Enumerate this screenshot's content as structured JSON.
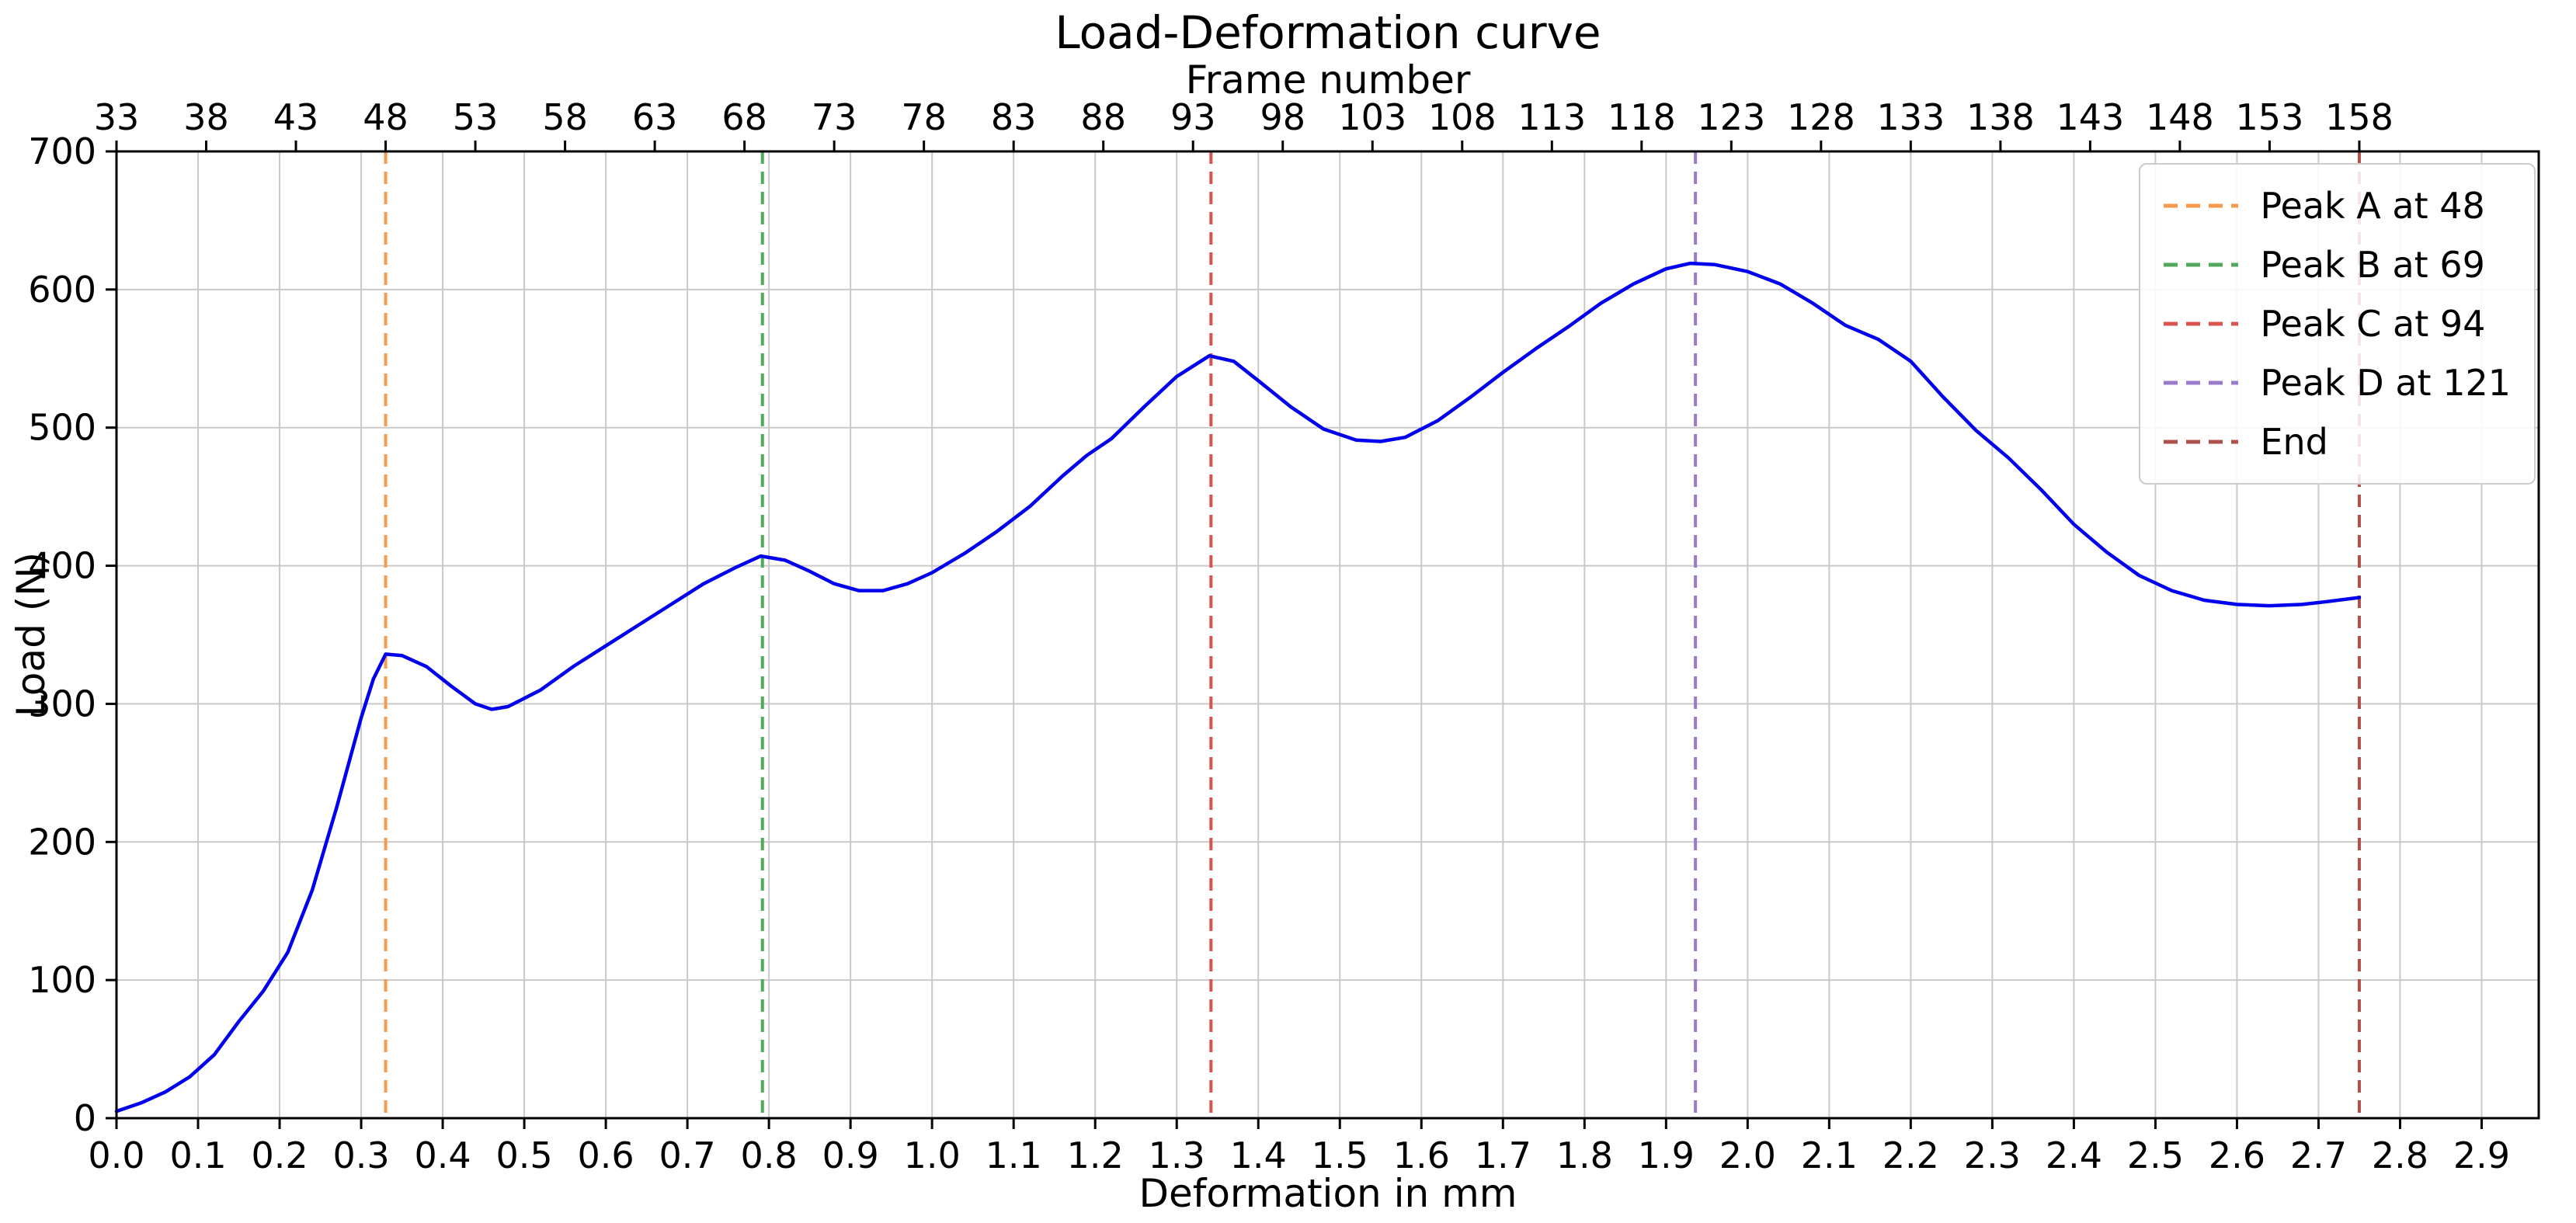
{
  "chart_data": {
    "type": "line",
    "title": "Load-Deformation curve",
    "xlabel": "Deformation in mm",
    "ylabel": "Load (N)",
    "top_axis_label": "Frame number",
    "xlim": [
      0,
      2.97
    ],
    "ylim": [
      0,
      700
    ],
    "grid": true,
    "grid_color": "#c9c9c9",
    "x_tick_values": [
      0.0,
      0.1,
      0.2,
      0.3,
      0.4,
      0.5,
      0.6,
      0.7,
      0.8,
      0.9,
      1.0,
      1.1,
      1.2,
      1.3,
      1.4,
      1.5,
      1.6,
      1.7,
      1.8,
      1.9,
      2.0,
      2.1,
      2.2,
      2.3,
      2.4,
      2.5,
      2.6,
      2.7,
      2.8,
      2.9
    ],
    "x_tick_labels": [
      "0.0",
      "0.1",
      "0.2",
      "0.3",
      "0.4",
      "0.5",
      "0.6",
      "0.7",
      "0.8",
      "0.9",
      "1.0",
      "1.1",
      "1.2",
      "1.3",
      "1.4",
      "1.5",
      "1.6",
      "1.7",
      "1.8",
      "1.9",
      "2.0",
      "2.1",
      "2.2",
      "2.3",
      "2.4",
      "2.5",
      "2.6",
      "2.7",
      "2.8",
      "2.9"
    ],
    "y_tick_values": [
      0,
      100,
      200,
      300,
      400,
      500,
      600,
      700
    ],
    "y_tick_labels": [
      "0",
      "100",
      "200",
      "300",
      "400",
      "500",
      "600",
      "700"
    ],
    "frame_tick_values": [
      33,
      38,
      43,
      48,
      53,
      58,
      63,
      68,
      73,
      78,
      83,
      88,
      93,
      98,
      103,
      108,
      113,
      118,
      123,
      128,
      133,
      138,
      143,
      148,
      153,
      158
    ],
    "frame_origin": 33,
    "mm_per_frame": 0.022,
    "series": [
      {
        "name": "load-deformation-curve",
        "color": "#0000ee",
        "x": [
          0.0,
          0.03,
          0.06,
          0.09,
          0.12,
          0.15,
          0.18,
          0.21,
          0.24,
          0.27,
          0.3,
          0.315,
          0.33,
          0.35,
          0.38,
          0.41,
          0.44,
          0.46,
          0.48,
          0.52,
          0.56,
          0.6,
          0.64,
          0.68,
          0.72,
          0.76,
          0.79,
          0.82,
          0.85,
          0.88,
          0.91,
          0.94,
          0.97,
          1.0,
          1.04,
          1.08,
          1.12,
          1.16,
          1.19,
          1.22,
          1.26,
          1.3,
          1.34,
          1.37,
          1.4,
          1.44,
          1.48,
          1.52,
          1.55,
          1.58,
          1.62,
          1.66,
          1.7,
          1.74,
          1.78,
          1.82,
          1.86,
          1.9,
          1.93,
          1.96,
          2.0,
          2.04,
          2.08,
          2.12,
          2.16,
          2.2,
          2.24,
          2.28,
          2.32,
          2.36,
          2.4,
          2.44,
          2.48,
          2.52,
          2.56,
          2.6,
          2.64,
          2.68,
          2.71,
          2.75
        ],
        "y": [
          5,
          11,
          19,
          30,
          46,
          70,
          92,
          120,
          165,
          225,
          290,
          318,
          336,
          335,
          327,
          313,
          300,
          296,
          298,
          310,
          327,
          342,
          357,
          372,
          387,
          399,
          407,
          404,
          396,
          387,
          382,
          382,
          387,
          395,
          409,
          425,
          443,
          465,
          480,
          492,
          515,
          537,
          552,
          548,
          534,
          515,
          499,
          491,
          490,
          493,
          505,
          522,
          540,
          557,
          573,
          590,
          604,
          615,
          619,
          618,
          613,
          604,
          590,
          574,
          564,
          548,
          522,
          498,
          478,
          455,
          430,
          410,
          393,
          382,
          375,
          372,
          371,
          372,
          374,
          377
        ]
      }
    ],
    "vlines": [
      {
        "label": "Peak A at 48",
        "frame": 48,
        "x_mm": 0.33,
        "color": "#f79a4d"
      },
      {
        "label": "Peak B at 69",
        "frame": 69,
        "x_mm": 0.792,
        "color": "#53a85b"
      },
      {
        "label": "Peak C at 94",
        "frame": 94,
        "x_mm": 1.342,
        "color": "#d9534f"
      },
      {
        "label": "Peak D at 121",
        "frame": 121,
        "x_mm": 1.936,
        "color": "#9b79cb"
      },
      {
        "label": "End",
        "frame": 158,
        "x_mm": 2.75,
        "color": "#b0504a"
      }
    ],
    "legend": {
      "position": "upper right",
      "items": [
        {
          "label": "Peak A at 48",
          "color": "#f79a4d"
        },
        {
          "label": "Peak B at 69",
          "color": "#53a85b"
        },
        {
          "label": "Peak C at 94",
          "color": "#d9534f"
        },
        {
          "label": "Peak D at 121",
          "color": "#9b79cb"
        },
        {
          "label": "End",
          "color": "#b0504a"
        }
      ]
    }
  }
}
